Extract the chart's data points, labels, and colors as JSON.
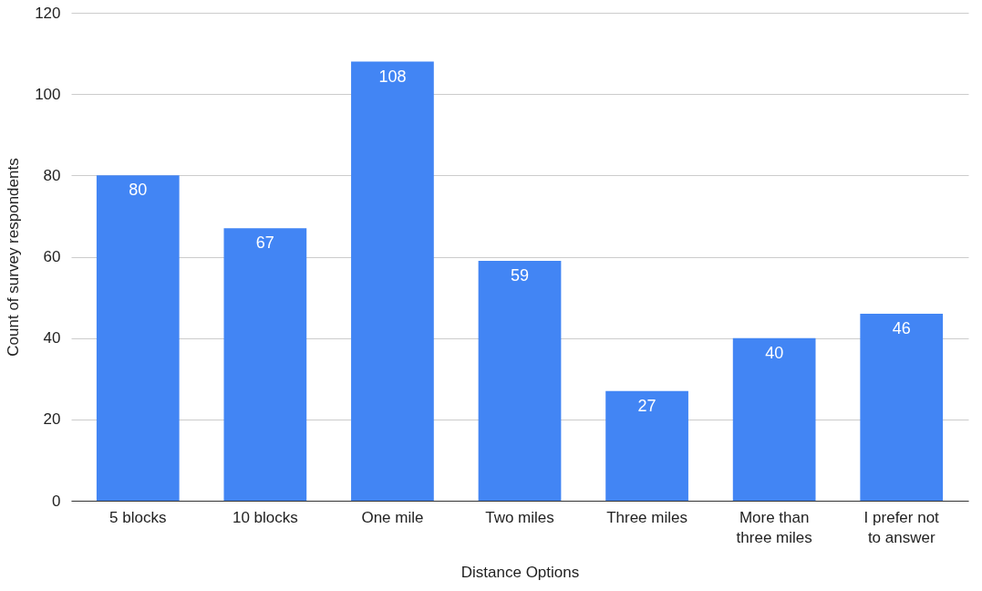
{
  "chart_data": {
    "type": "bar",
    "xlabel": "Distance Options",
    "ylabel": "Count of survey respondents",
    "categories": [
      "5 blocks",
      "10 blocks",
      "One mile",
      "Two miles",
      "Three miles",
      "More than three miles",
      "I prefer not to answer"
    ],
    "values": [
      80,
      67,
      108,
      59,
      27,
      40,
      46
    ],
    "color": "#4285f4",
    "ylim": [
      0,
      120
    ],
    "yticks": [
      0,
      20,
      40,
      60,
      80,
      100,
      120
    ],
    "grid": "y",
    "data_labels": true
  }
}
